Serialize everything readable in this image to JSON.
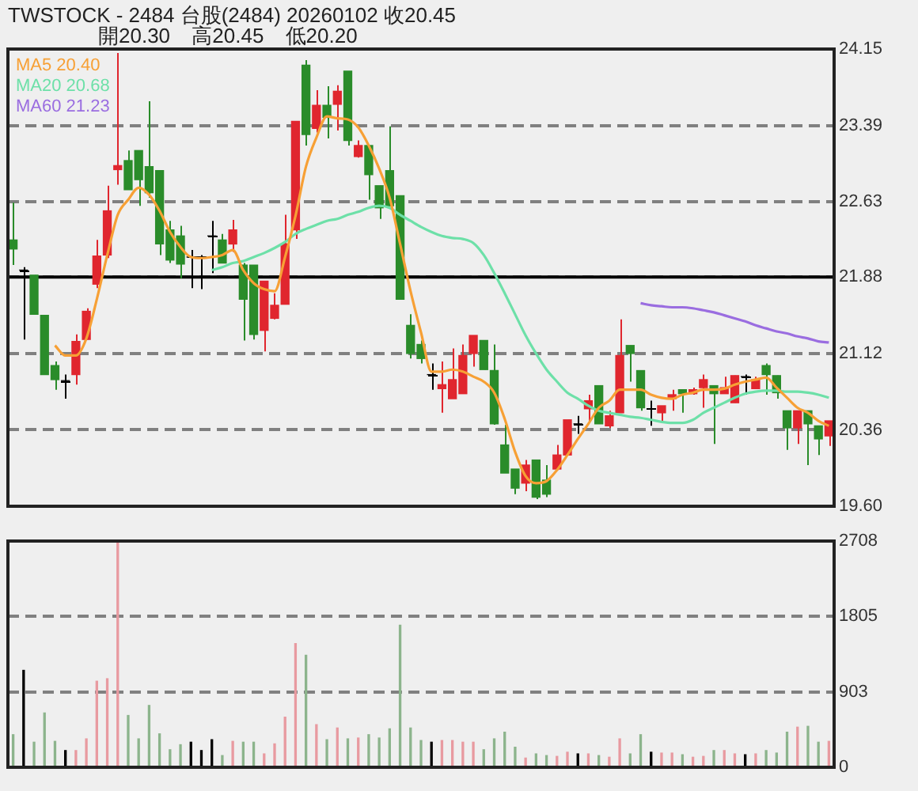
{
  "chart_data": [
    {
      "type": "candlestick",
      "title": "TWSTOCK - 2484 台股(2484) 20260102 收20.45",
      "subtitle": "開20.30 高20.45 低20.20",
      "categories": [
        null,
        null,
        null,
        null,
        null,
        null,
        null,
        null,
        null,
        null,
        null,
        null,
        null,
        null,
        null,
        null,
        null,
        null,
        null,
        null,
        null,
        null,
        null,
        null,
        null,
        null,
        null,
        null,
        null,
        null,
        null,
        null,
        null,
        null,
        null,
        null,
        null,
        null,
        null,
        null,
        null,
        null,
        null,
        null,
        null,
        null,
        null,
        null,
        null,
        null,
        null,
        null,
        null,
        null,
        null,
        null,
        null,
        null,
        null,
        null,
        null,
        null,
        null,
        null,
        null,
        null,
        null,
        null,
        null,
        null,
        null,
        null,
        null,
        null,
        null,
        null,
        null,
        null,
        null
      ],
      "ohlc": [
        [
          22.25,
          22.62,
          22.0,
          22.16
        ],
        [
          21.95,
          21.98,
          21.26,
          21.95
        ],
        [
          21.9,
          21.9,
          21.51,
          21.51
        ],
        [
          21.5,
          21.5,
          20.91,
          20.91
        ],
        [
          21.0,
          21.04,
          20.76,
          20.86
        ],
        [
          20.85,
          20.91,
          20.67,
          20.85
        ],
        [
          20.91,
          21.31,
          20.81,
          21.24
        ],
        [
          21.26,
          21.57,
          21.26,
          21.54
        ],
        [
          21.81,
          22.25,
          21.77,
          22.09
        ],
        [
          22.1,
          22.79,
          22.07,
          22.54
        ],
        [
          22.95,
          24.11,
          22.8,
          22.99
        ],
        [
          23.04,
          23.14,
          22.75,
          22.75
        ],
        [
          23.14,
          23.14,
          22.59,
          22.85
        ],
        [
          22.98,
          23.63,
          22.67,
          22.72
        ],
        [
          22.94,
          22.94,
          22.1,
          22.21
        ],
        [
          22.35,
          22.44,
          22.02,
          22.05
        ],
        [
          22.29,
          22.39,
          21.87,
          22.01
        ],
        [
          22.08,
          22.15,
          21.77,
          22.08
        ],
        [
          22.08,
          22.1,
          21.76,
          22.08
        ],
        [
          22.29,
          22.44,
          21.92,
          22.29
        ],
        [
          22.25,
          22.31,
          22.02,
          22.02
        ],
        [
          22.21,
          22.45,
          22.13,
          22.35
        ],
        [
          22.0,
          22.02,
          21.25,
          21.66
        ],
        [
          22.0,
          22.0,
          21.26,
          21.31
        ],
        [
          21.35,
          21.84,
          21.14,
          21.84
        ],
        [
          21.47,
          21.72,
          21.46,
          21.6
        ],
        [
          21.61,
          22.5,
          21.61,
          22.21
        ],
        [
          22.35,
          23.43,
          22.26,
          23.43
        ],
        [
          23.99,
          24.04,
          23.19,
          23.3
        ],
        [
          23.36,
          23.74,
          23.32,
          23.59
        ],
        [
          23.59,
          23.78,
          23.26,
          23.47
        ],
        [
          23.6,
          23.79,
          23.34,
          23.73
        ],
        [
          23.93,
          23.93,
          23.19,
          23.24
        ],
        [
          23.08,
          23.24,
          23.07,
          23.19
        ],
        [
          23.19,
          23.19,
          22.65,
          22.9
        ],
        [
          22.79,
          22.79,
          22.46,
          22.57
        ],
        [
          22.94,
          23.38,
          22.59,
          22.59
        ],
        [
          22.69,
          22.69,
          21.66,
          21.66
        ],
        [
          21.4,
          21.51,
          21.07,
          21.12
        ],
        [
          21.21,
          21.25,
          21.02,
          21.07
        ],
        [
          20.91,
          21.02,
          20.76,
          20.91
        ],
        [
          20.77,
          21.04,
          20.53,
          20.81
        ],
        [
          20.67,
          21.17,
          20.67,
          20.86
        ],
        [
          20.72,
          21.21,
          20.72,
          21.1
        ],
        [
          21.12,
          21.3,
          20.99,
          21.3
        ],
        [
          21.25,
          21.25,
          20.96,
          20.96
        ],
        [
          20.95,
          21.21,
          20.41,
          20.42
        ],
        [
          20.21,
          20.41,
          19.93,
          19.93
        ],
        [
          19.97,
          19.97,
          19.72,
          19.78
        ],
        [
          19.83,
          20.06,
          19.75,
          20.01
        ],
        [
          20.06,
          20.06,
          19.67,
          19.69
        ],
        [
          19.86,
          20.01,
          19.69,
          19.72
        ],
        [
          19.97,
          20.21,
          19.96,
          20.11
        ],
        [
          20.11,
          20.46,
          20.11,
          20.46
        ],
        [
          20.42,
          20.5,
          20.32,
          20.42
        ],
        [
          20.57,
          20.71,
          20.45,
          20.65
        ],
        [
          20.8,
          20.8,
          20.42,
          20.42
        ],
        [
          20.4,
          20.55,
          20.38,
          20.5
        ],
        [
          20.53,
          21.46,
          20.53,
          21.1
        ],
        [
          21.2,
          21.2,
          20.84,
          21.12
        ],
        [
          20.95,
          20.95,
          20.55,
          20.58
        ],
        [
          20.57,
          20.65,
          20.4,
          20.57
        ],
        [
          20.53,
          20.6,
          20.43,
          20.6
        ],
        [
          20.67,
          20.76,
          20.55,
          20.71
        ],
        [
          20.76,
          20.76,
          20.53,
          20.72
        ],
        [
          20.72,
          20.78,
          20.71,
          20.76
        ],
        [
          20.78,
          20.91,
          20.58,
          20.86
        ],
        [
          20.8,
          20.8,
          20.22,
          20.72
        ],
        [
          20.72,
          20.89,
          20.72,
          20.78
        ],
        [
          20.63,
          20.9,
          20.63,
          20.9
        ],
        [
          20.89,
          20.91,
          20.71,
          20.89
        ],
        [
          20.77,
          20.89,
          20.77,
          20.86
        ],
        [
          21.0,
          21.02,
          20.71,
          20.91
        ],
        [
          20.9,
          20.9,
          20.67,
          20.73
        ],
        [
          20.55,
          20.55,
          20.16,
          20.38
        ],
        [
          20.38,
          20.55,
          20.22,
          20.55
        ],
        [
          20.55,
          20.55,
          20.01,
          20.42
        ],
        [
          20.4,
          20.4,
          20.11,
          20.27
        ],
        [
          20.3,
          20.45,
          20.2,
          20.45
        ]
      ],
      "colors": [
        "#2a8c2a",
        "#000000",
        "#2a8c2a",
        "#2a8c2a",
        "#2a8c2a",
        "#000000",
        "#e0262e",
        "#e0262e",
        "#e0262e",
        "#e0262e",
        "#e0262e",
        "#2a8c2a",
        "#2a8c2a",
        "#2a8c2a",
        "#2a8c2a",
        "#2a8c2a",
        "#2a8c2a",
        "#000000",
        "#000000",
        "#000000",
        "#2a8c2a",
        "#e0262e",
        "#2a8c2a",
        "#2a8c2a",
        "#e0262e",
        "#e0262e",
        "#e0262e",
        "#e0262e",
        "#2a8c2a",
        "#e0262e",
        "#2a8c2a",
        "#e0262e",
        "#2a8c2a",
        "#e0262e",
        "#2a8c2a",
        "#2a8c2a",
        "#2a8c2a",
        "#2a8c2a",
        "#2a8c2a",
        "#2a8c2a",
        "#000000",
        "#e0262e",
        "#e0262e",
        "#e0262e",
        "#e0262e",
        "#2a8c2a",
        "#2a8c2a",
        "#2a8c2a",
        "#2a8c2a",
        "#e0262e",
        "#2a8c2a",
        "#2a8c2a",
        "#e0262e",
        "#e0262e",
        "#000000",
        "#e0262e",
        "#2a8c2a",
        "#e0262e",
        "#e0262e",
        "#2a8c2a",
        "#2a8c2a",
        "#000000",
        "#e0262e",
        "#e0262e",
        "#2a8c2a",
        "#e0262e",
        "#e0262e",
        "#2a8c2a",
        "#e0262e",
        "#e0262e",
        "#000000",
        "#e0262e",
        "#2a8c2a",
        "#2a8c2a",
        "#2a8c2a",
        "#e0262e",
        "#2a8c2a",
        "#2a8c2a",
        "#e0262e"
      ],
      "series": [
        {
          "type": "line",
          "name": "MA5 20.40",
          "color": "#f7a035",
          "values": [
            null,
            null,
            null,
            null,
            21.2,
            21.1,
            21.1,
            21.27,
            21.66,
            22.1,
            22.5,
            22.65,
            22.77,
            22.7,
            22.54,
            22.33,
            22.18,
            22.08,
            22.07,
            22.08,
            22.1,
            22.15,
            21.95,
            21.82,
            21.76,
            21.74,
            22.08,
            22.49,
            22.98,
            23.27,
            23.48,
            23.46,
            23.45,
            23.37,
            23.19,
            22.96,
            22.67,
            22.21,
            21.74,
            21.33,
            20.94,
            20.94,
            20.96,
            20.94,
            20.89,
            20.84,
            20.73,
            20.47,
            20.14,
            19.9,
            19.83,
            19.85,
            19.96,
            20.11,
            20.27,
            20.42,
            20.58,
            20.65,
            20.76,
            20.76,
            20.76,
            20.71,
            20.68,
            20.67,
            20.71,
            20.73,
            20.76,
            20.76,
            20.77,
            20.81,
            20.84,
            20.86,
            20.88,
            20.78,
            20.68,
            20.58,
            20.53,
            20.45,
            20.4
          ]
        },
        {
          "type": "line",
          "name": "MA20 20.68",
          "color": "#6de0a8",
          "values": [
            null,
            null,
            null,
            null,
            null,
            null,
            null,
            null,
            null,
            null,
            null,
            null,
            null,
            null,
            null,
            null,
            null,
            null,
            null,
            21.95,
            21.98,
            22.02,
            22.04,
            22.08,
            22.12,
            22.17,
            22.23,
            22.31,
            22.36,
            22.4,
            22.44,
            22.46,
            22.5,
            22.53,
            22.57,
            22.59,
            22.57,
            22.5,
            22.44,
            22.38,
            22.33,
            22.29,
            22.27,
            22.26,
            22.22,
            22.1,
            21.92,
            21.72,
            21.51,
            21.3,
            21.12,
            20.96,
            20.84,
            20.73,
            20.67,
            20.6,
            20.55,
            20.53,
            20.51,
            20.49,
            20.48,
            20.46,
            20.44,
            20.43,
            20.43,
            20.46,
            20.53,
            20.58,
            20.63,
            20.68,
            20.72,
            20.74,
            20.75,
            20.75,
            20.74,
            20.74,
            20.73,
            20.71,
            20.68
          ]
        },
        {
          "type": "line",
          "name": "MA60 21.23",
          "color": "#9a6de0",
          "values": [
            null,
            null,
            null,
            null,
            null,
            null,
            null,
            null,
            null,
            null,
            null,
            null,
            null,
            null,
            null,
            null,
            null,
            null,
            null,
            null,
            null,
            null,
            null,
            null,
            null,
            null,
            null,
            null,
            null,
            null,
            null,
            null,
            null,
            null,
            null,
            null,
            null,
            null,
            null,
            null,
            null,
            null,
            null,
            null,
            null,
            null,
            null,
            null,
            null,
            null,
            null,
            null,
            null,
            null,
            null,
            null,
            null,
            null,
            null,
            null,
            21.62,
            21.6,
            21.59,
            21.58,
            21.58,
            21.57,
            21.55,
            21.53,
            21.5,
            21.47,
            21.44,
            21.4,
            21.37,
            21.34,
            21.32,
            21.29,
            21.27,
            21.24,
            21.23
          ]
        }
      ],
      "ylim": [
        19.6,
        24.15
      ],
      "yticks": [
        {
          "value": 19.6,
          "label": "19.60"
        },
        20.36,
        21.12,
        21.88,
        22.63,
        23.39,
        24.15
      ],
      "ref_lines": [
        {
          "axis": "y",
          "value": 21.88,
          "color": "#000000"
        }
      ],
      "grid": "y",
      "legend": "top left",
      "marker": "none",
      "tick_labels": "y"
    },
    {
      "type": "bar",
      "categories": [
        null,
        null,
        null,
        null,
        null,
        null,
        null,
        null,
        null,
        null,
        null,
        null,
        null,
        null,
        null,
        null,
        null,
        null,
        null,
        null,
        null,
        null,
        null,
        null,
        null,
        null,
        null,
        null,
        null,
        null,
        null,
        null,
        null,
        null,
        null,
        null,
        null,
        null,
        null,
        null,
        null,
        null,
        null,
        null,
        null,
        null,
        null,
        null,
        null,
        null,
        null,
        null,
        null,
        null,
        null,
        null,
        null,
        null,
        null,
        null,
        null,
        null,
        null,
        null,
        null,
        null,
        null,
        null,
        null,
        null,
        null,
        null,
        null,
        null,
        null,
        null,
        null,
        null,
        null
      ],
      "values": [
        390,
        1160,
        300,
        650,
        310,
        200,
        200,
        340,
        1030,
        1060,
        2690,
        620,
        340,
        740,
        400,
        210,
        270,
        300,
        200,
        330,
        140,
        310,
        300,
        300,
        160,
        280,
        600,
        1480,
        1340,
        510,
        330,
        470,
        340,
        350,
        390,
        350,
        460,
        1700,
        470,
        320,
        300,
        320,
        320,
        300,
        300,
        210,
        340,
        420,
        240,
        110,
        160,
        140,
        130,
        180,
        160,
        160,
        140,
        120,
        340,
        160,
        390,
        180,
        170,
        170,
        150,
        120,
        130,
        200,
        200,
        160,
        150,
        160,
        200,
        170,
        420,
        480,
        490,
        300,
        310
      ],
      "colors": [
        "#8cb48c",
        "#000000",
        "#8cb48c",
        "#8cb48c",
        "#8cb48c",
        "#000000",
        "#e89aa0",
        "#e89aa0",
        "#e89aa0",
        "#e89aa0",
        "#e89aa0",
        "#8cb48c",
        "#8cb48c",
        "#8cb48c",
        "#8cb48c",
        "#8cb48c",
        "#8cb48c",
        "#000000",
        "#000000",
        "#000000",
        "#8cb48c",
        "#e89aa0",
        "#8cb48c",
        "#8cb48c",
        "#e89aa0",
        "#e89aa0",
        "#e89aa0",
        "#e89aa0",
        "#8cb48c",
        "#e89aa0",
        "#8cb48c",
        "#e89aa0",
        "#8cb48c",
        "#e89aa0",
        "#8cb48c",
        "#8cb48c",
        "#8cb48c",
        "#8cb48c",
        "#8cb48c",
        "#8cb48c",
        "#000000",
        "#e89aa0",
        "#e89aa0",
        "#e89aa0",
        "#e89aa0",
        "#8cb48c",
        "#8cb48c",
        "#8cb48c",
        "#8cb48c",
        "#e89aa0",
        "#8cb48c",
        "#8cb48c",
        "#e89aa0",
        "#e89aa0",
        "#000000",
        "#e89aa0",
        "#8cb48c",
        "#e89aa0",
        "#e89aa0",
        "#8cb48c",
        "#8cb48c",
        "#000000",
        "#e89aa0",
        "#e89aa0",
        "#8cb48c",
        "#e89aa0",
        "#e89aa0",
        "#8cb48c",
        "#e89aa0",
        "#e89aa0",
        "#000000",
        "#e89aa0",
        "#8cb48c",
        "#8cb48c",
        "#8cb48c",
        "#e89aa0",
        "#8cb48c",
        "#8cb48c",
        "#e89aa0"
      ],
      "ylim": [
        0,
        2708
      ],
      "yticks": [
        0,
        903,
        1805,
        2708
      ],
      "grid": "y",
      "tick_labels": "y"
    }
  ]
}
